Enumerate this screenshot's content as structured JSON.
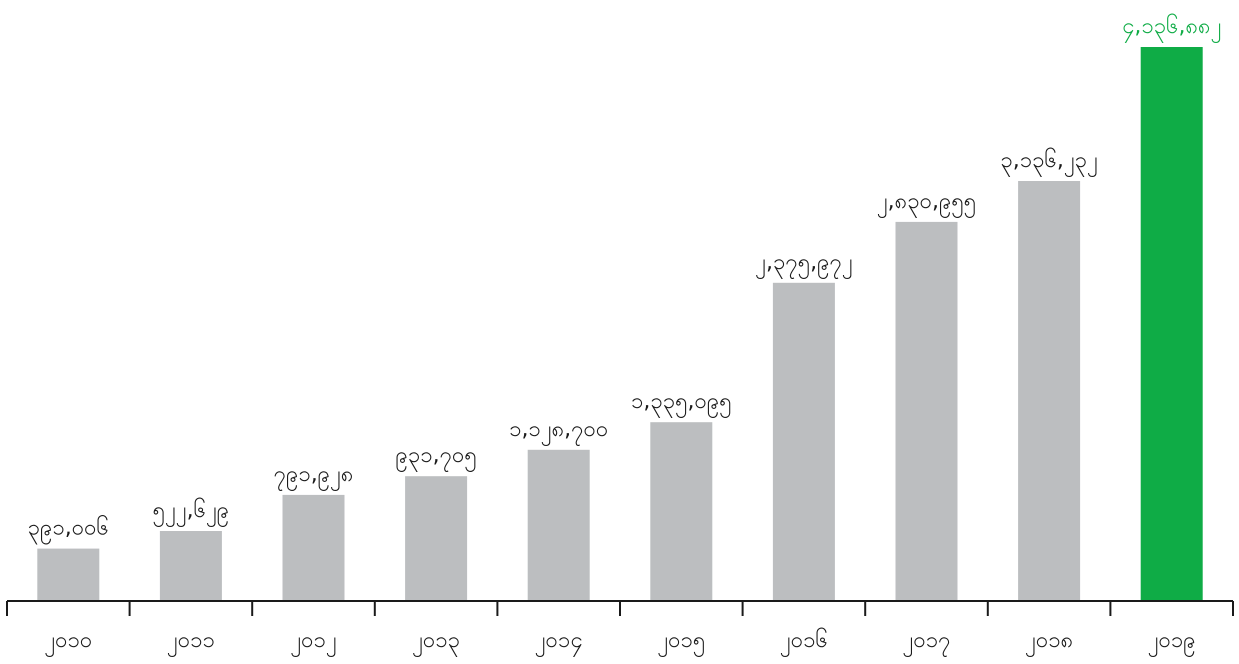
{
  "chart_data": {
    "type": "bar",
    "title": "",
    "xlabel": "",
    "ylabel": "",
    "categories": [
      "၂၀၁၀",
      "၂၀၁၁",
      "၂၀၁၂",
      "၂၀၁၃",
      "၂၀၁၄",
      "၂၀၁၅",
      "၂၀၁၆",
      "၂၀၁၇",
      "၂၀၁၈",
      "၂၀၁၉"
    ],
    "values": [
      391006,
      522629,
      791928,
      931705,
      1128700,
      1335095,
      2375972,
      2830955,
      3136232,
      4136882
    ],
    "value_labels": [
      "၃၉၁,၀၀၆",
      "၅၂၂,၆၂၉",
      "၇၉၁,၉၂၈",
      "၉၃၁,၇၀၅",
      "၁,၁၂၈,၇၀၀",
      "၁,၃၃၅,၀၉၅",
      "၂,၃၇၅,၉၇၂",
      "၂,၈၃၀,၉၅၅",
      "၃,၁၃၆,၂၃၂",
      "၄,၁၃၆,၈၈၂"
    ],
    "ylim": [
      0,
      4136882
    ],
    "grid": false,
    "legend": "none",
    "highlight_index": 9,
    "colors": {
      "bar": "#bcbec0",
      "highlight": "#0fac46",
      "label": "#1a1a1a",
      "highlight_label": "#0fac46",
      "axis": "#1a1a1a"
    }
  }
}
